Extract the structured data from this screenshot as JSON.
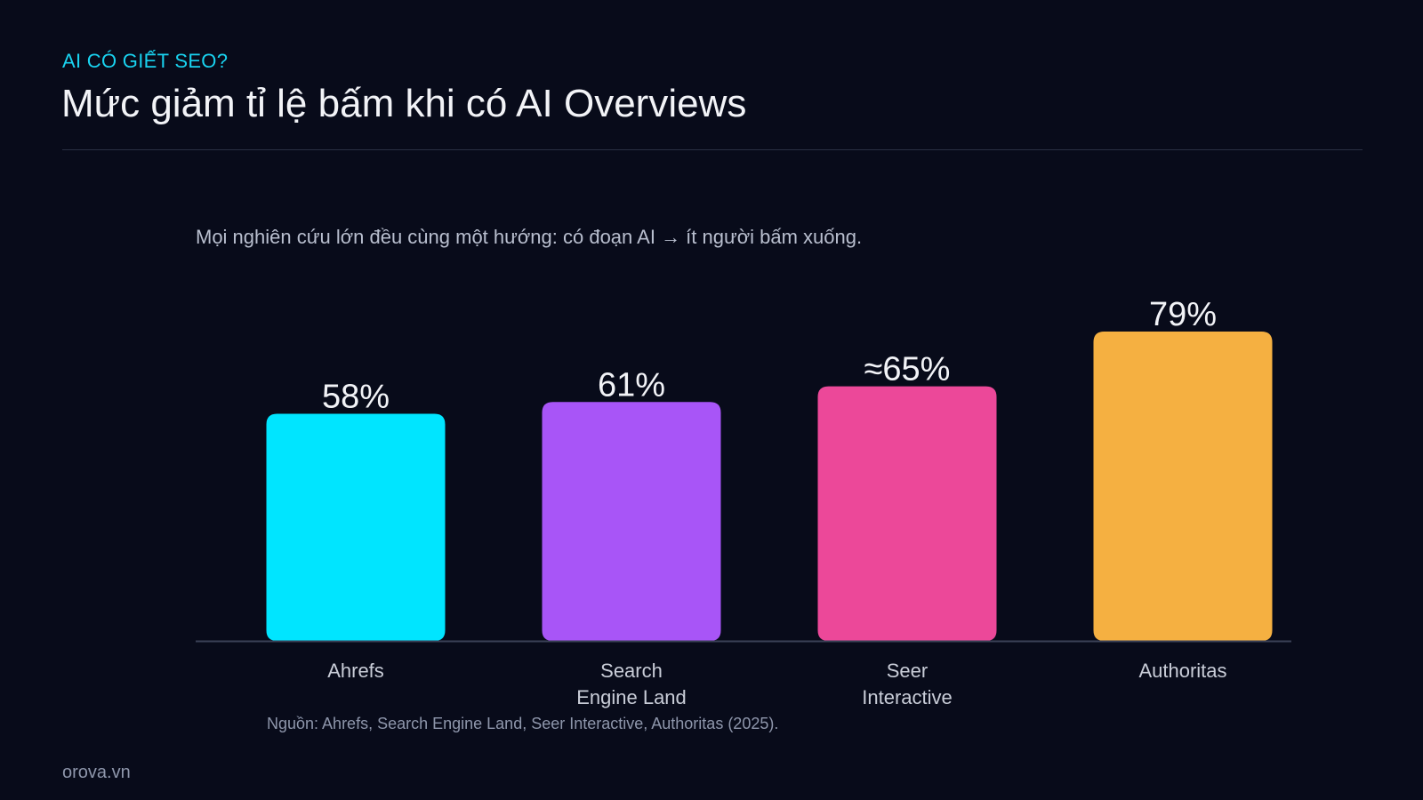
{
  "header": {
    "eyebrow": "AI CÓ GIẾT SEO?",
    "title": "Mức giảm tỉ lệ bấm khi có AI Overviews"
  },
  "subtitle": "Mọi nghiên cứu lớn đều cùng một hướng: có đoạn AI → ít người bấm xuống.",
  "footer": {
    "source": "Nguồn: Ahrefs, Search Engine Land, Seer Interactive, Authoritas (2025).",
    "brand": "orova.vn"
  },
  "chart_data": {
    "type": "bar",
    "categories": [
      [
        "Ahrefs"
      ],
      [
        "Search",
        "Engine Land"
      ],
      [
        "Seer",
        "Interactive"
      ],
      [
        "Authoritas"
      ]
    ],
    "values": [
      58,
      61,
      65,
      79
    ],
    "value_labels": [
      "58%",
      "61%",
      "≈65%",
      "79%"
    ],
    "colors": [
      "#00e5ff",
      "#a855f7",
      "#ec4899",
      "#f5b041"
    ],
    "ylim": [
      0,
      79
    ],
    "grid": false,
    "legend": "none"
  }
}
